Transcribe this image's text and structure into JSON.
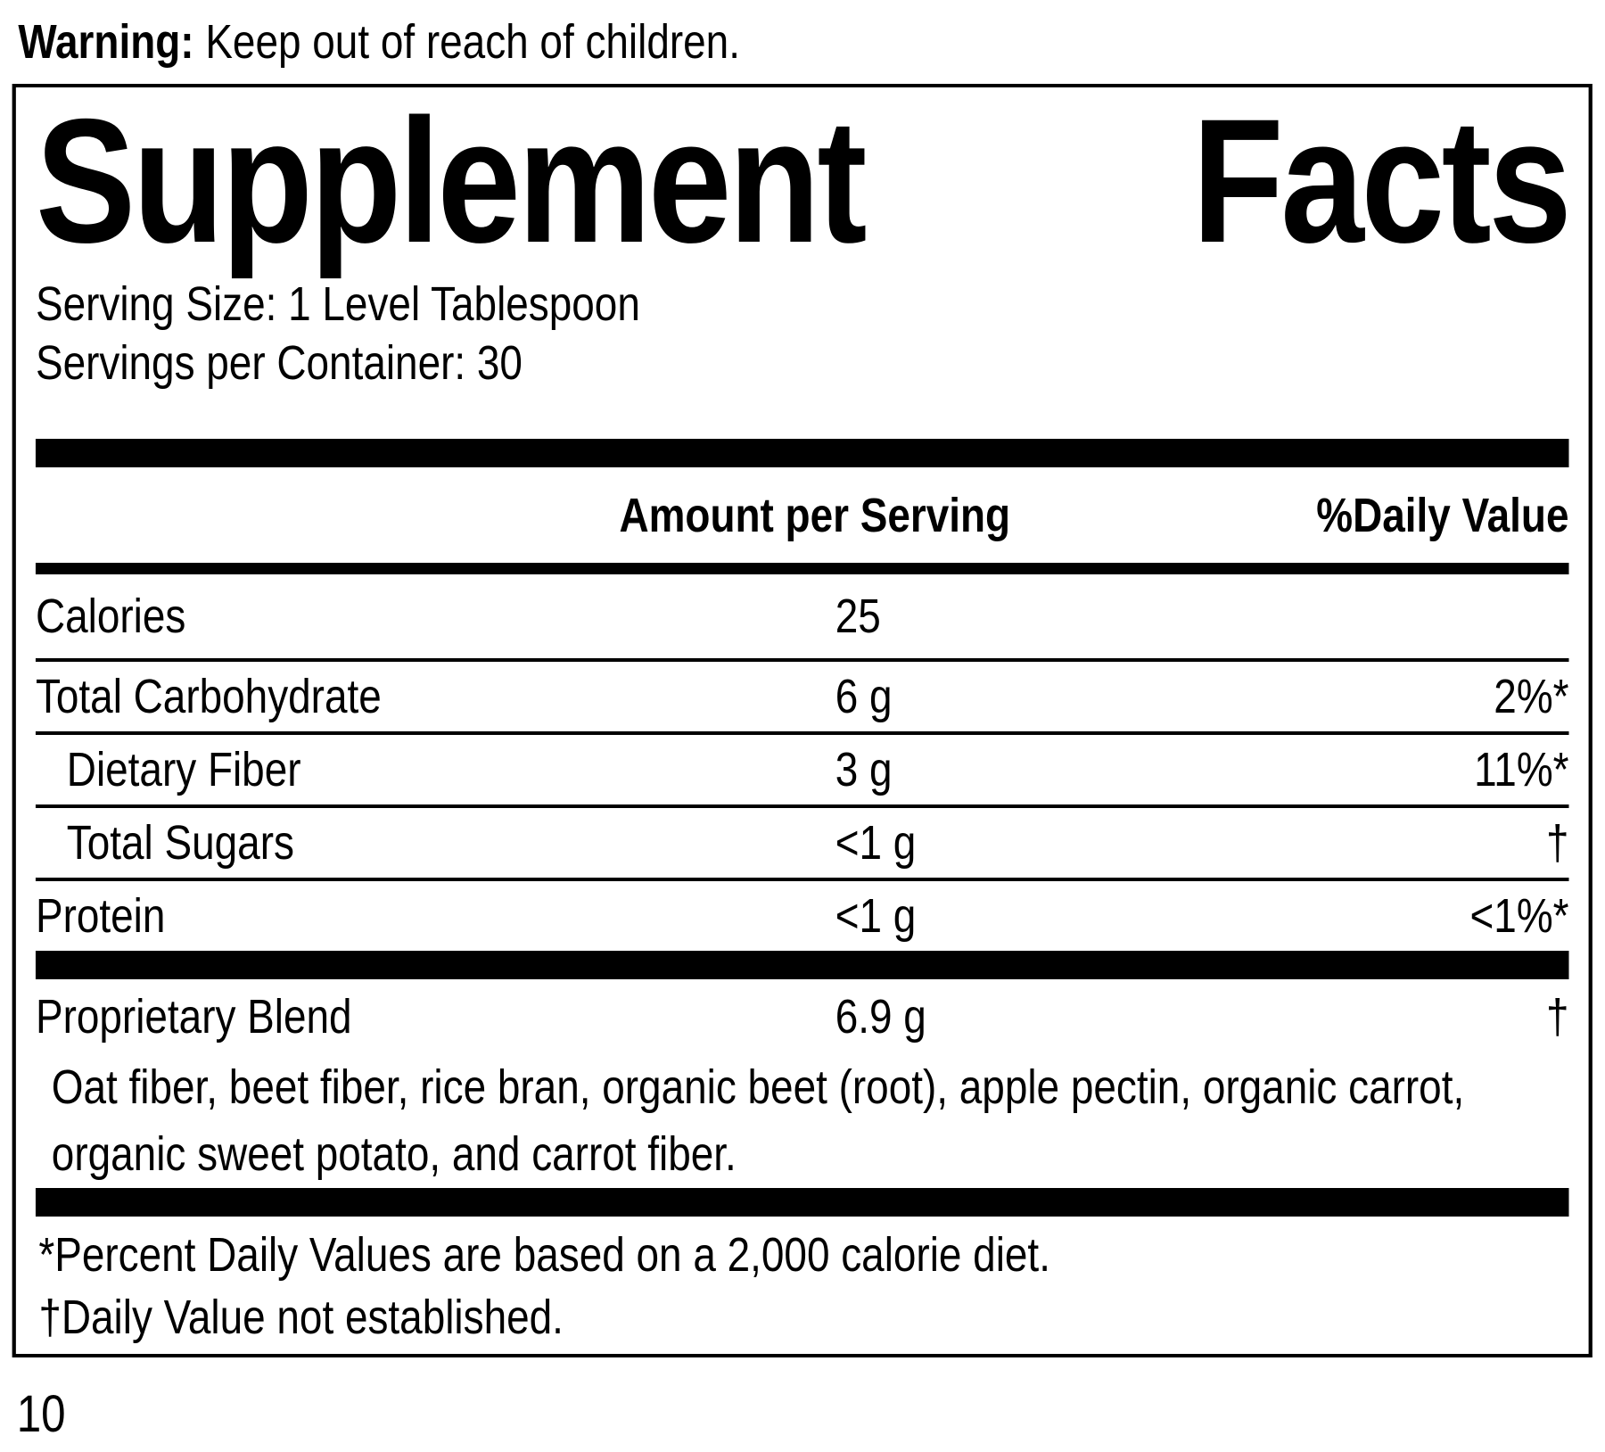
{
  "warning": {
    "label": "Warning:",
    "text": " Keep out of reach of children."
  },
  "panel": {
    "title": [
      "Supplement",
      "Facts"
    ],
    "serving_size": "Serving Size: 1 Level Tablespoon",
    "servings_per_container": "Servings per Container: 30",
    "columns": {
      "amount": "Amount per Serving",
      "daily_value": "%Daily Value"
    },
    "rows": [
      {
        "name": "Calories",
        "amount": "25",
        "dv": "",
        "indent": false
      },
      {
        "name": "Total Carbohydrate",
        "amount": "6 g",
        "dv": "2%*",
        "indent": false
      },
      {
        "name": "Dietary Fiber",
        "amount": "3 g",
        "dv": "11%*",
        "indent": true
      },
      {
        "name": "Total Sugars",
        "amount": "<1 g",
        "dv": "†",
        "indent": true
      },
      {
        "name": "Protein",
        "amount": "<1 g",
        "dv": "<1%*",
        "indent": false
      }
    ],
    "proprietary_blend": {
      "name": "Proprietary Blend",
      "amount": "6.9 g",
      "dv": "†",
      "ingredients": "Oat fiber, beet fiber, rice bran, organic beet (root), apple pectin, organic carrot, organic sweet potato, and carrot fiber."
    },
    "footnotes": [
      "*Percent Daily Values are based on a 2,000 calorie diet.",
      "†Daily Value not established."
    ]
  },
  "page_number": "10"
}
